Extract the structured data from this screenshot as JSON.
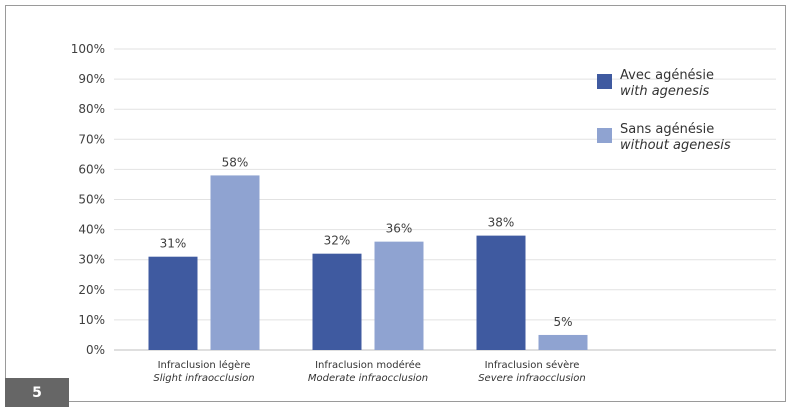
{
  "figure": {
    "number": "5"
  },
  "chart_data": {
    "type": "bar",
    "ylim": [
      0,
      100
    ],
    "yticks": [
      0,
      10,
      20,
      30,
      40,
      50,
      60,
      70,
      80,
      90,
      100
    ],
    "ytick_suffix": "%",
    "grid": true,
    "legend_position": "top-right",
    "categories": [
      {
        "fr": "Infraclusion légère",
        "en": "Slight infraocclusion"
      },
      {
        "fr": "Infraclusion modérée",
        "en": "Moderate infraocclusion"
      },
      {
        "fr": "Infraclusion sévère",
        "en": "Severe infraocclusion"
      }
    ],
    "series": [
      {
        "name_fr": "Avec agénésie",
        "name_en": "with agenesis",
        "color": "#3f5aa0",
        "values": [
          31,
          32,
          38
        ],
        "labels": [
          "31%",
          "32%",
          "38%"
        ]
      },
      {
        "name_fr": "Sans agénésie",
        "name_en": "without agenesis",
        "color": "#8fa3d1",
        "values": [
          58,
          36,
          5
        ],
        "labels": [
          "58%",
          "36%",
          "5%"
        ]
      }
    ]
  }
}
